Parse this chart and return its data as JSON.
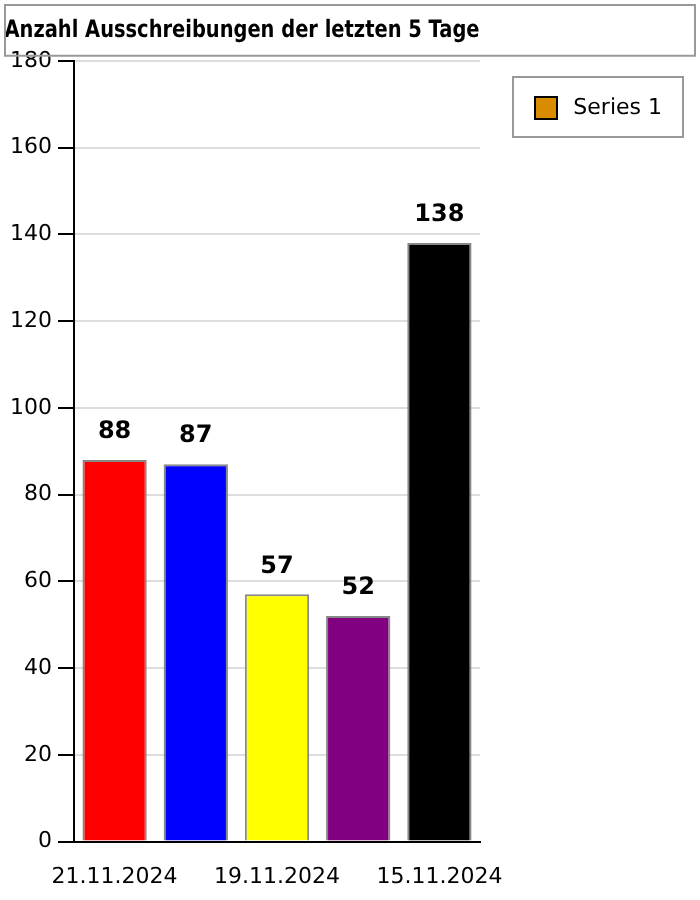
{
  "chart_data": {
    "type": "bar",
    "title": "Anzahl Ausschreibungen der letzten 5 Tage",
    "categories": [
      "21.11.2024",
      null,
      "19.11.2024",
      null,
      "15.11.2024"
    ],
    "series": [
      {
        "name": "Series 1",
        "color": "#d98c00",
        "colors": [
          "#ff0000",
          "#0000ff",
          "#ffff00",
          "#800080",
          "#000000"
        ],
        "values": [
          88,
          87,
          57,
          52,
          138
        ]
      }
    ],
    "ylim": [
      0,
      180
    ],
    "yticks": [
      0,
      20,
      40,
      60,
      80,
      100,
      120,
      140,
      160,
      180
    ],
    "grid": "y",
    "legend": "top right",
    "data_labels": true
  }
}
